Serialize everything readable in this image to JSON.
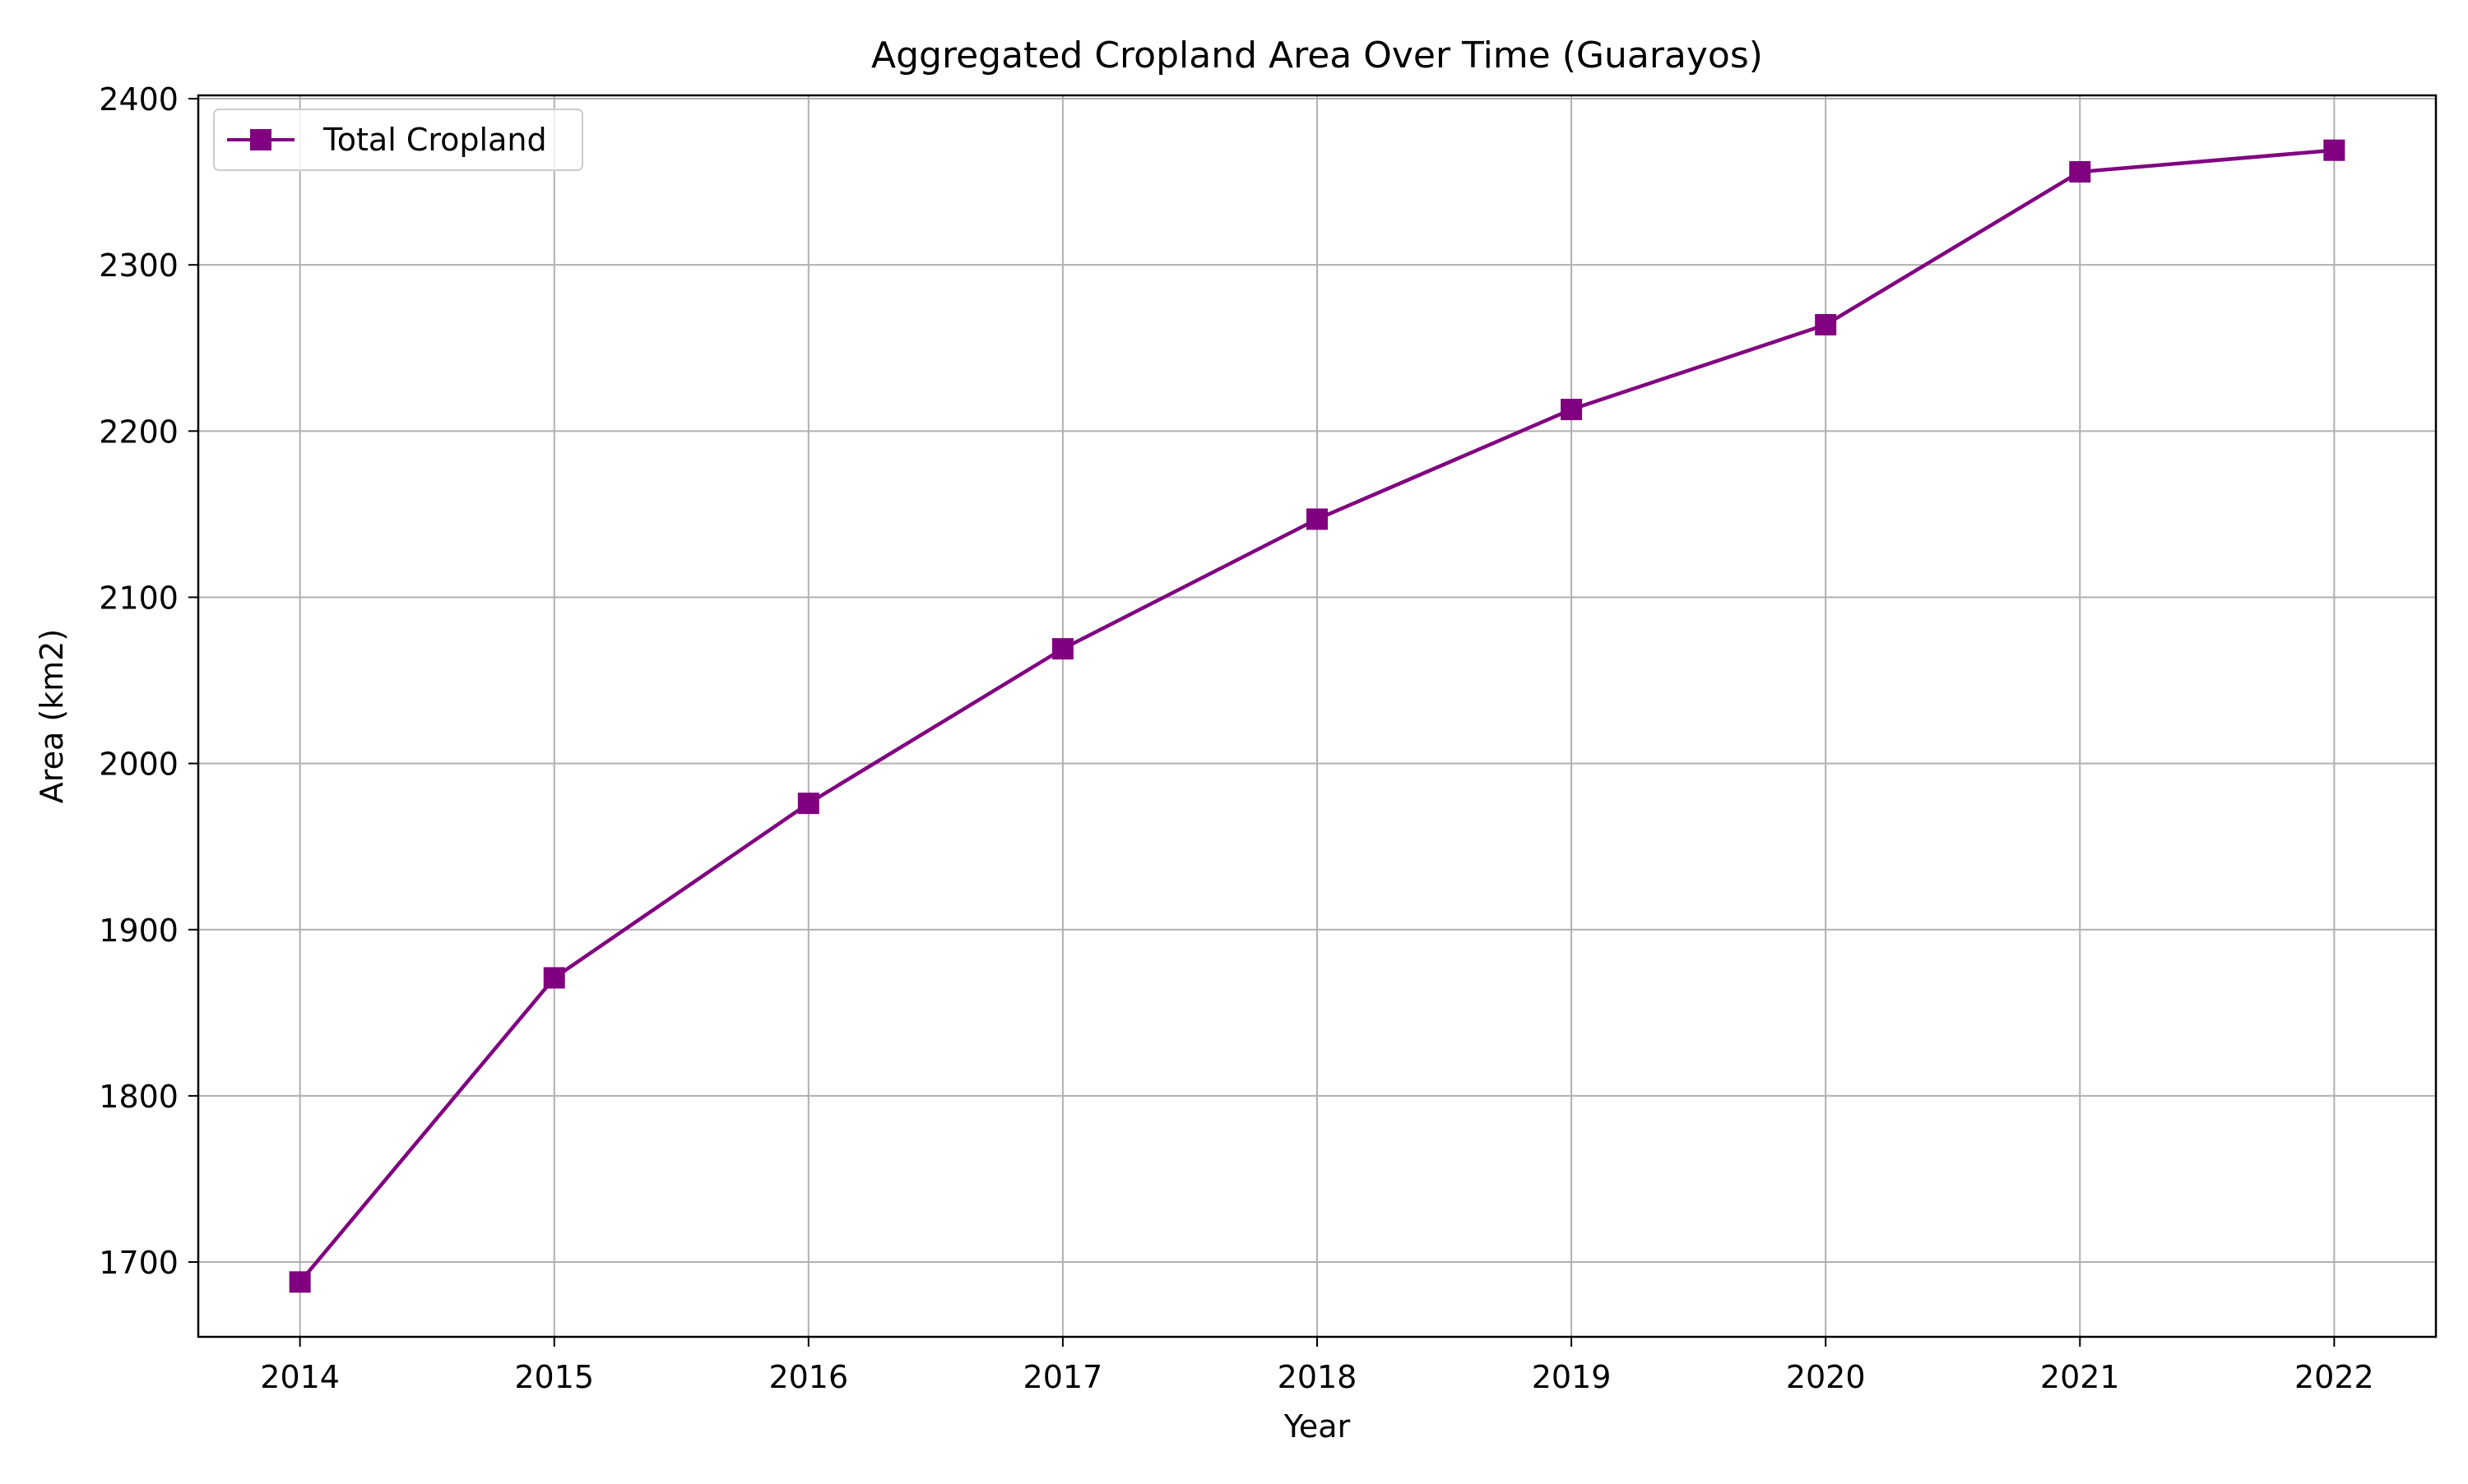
{
  "chart_data": {
    "type": "line",
    "title": "Aggregated Cropland Area Over Time (Guarayos)",
    "xlabel": "Year",
    "ylabel": "Area (km2)",
    "x": [
      2014,
      2015,
      2016,
      2017,
      2018,
      2019,
      2020,
      2021,
      2022
    ],
    "xlim": [
      2013.6,
      2022.4
    ],
    "ylim": [
      1655,
      2402
    ],
    "yticks": [
      1700,
      1800,
      1900,
      2000,
      2100,
      2200,
      2300,
      2400
    ],
    "grid": true,
    "legend_position": "top-left",
    "series": [
      {
        "name": "Total Cropland",
        "color": "#800080",
        "marker": "square",
        "values": [
          1688,
          1871,
          1976,
          2069,
          2147,
          2213,
          2264,
          2356,
          2369
        ]
      }
    ]
  }
}
